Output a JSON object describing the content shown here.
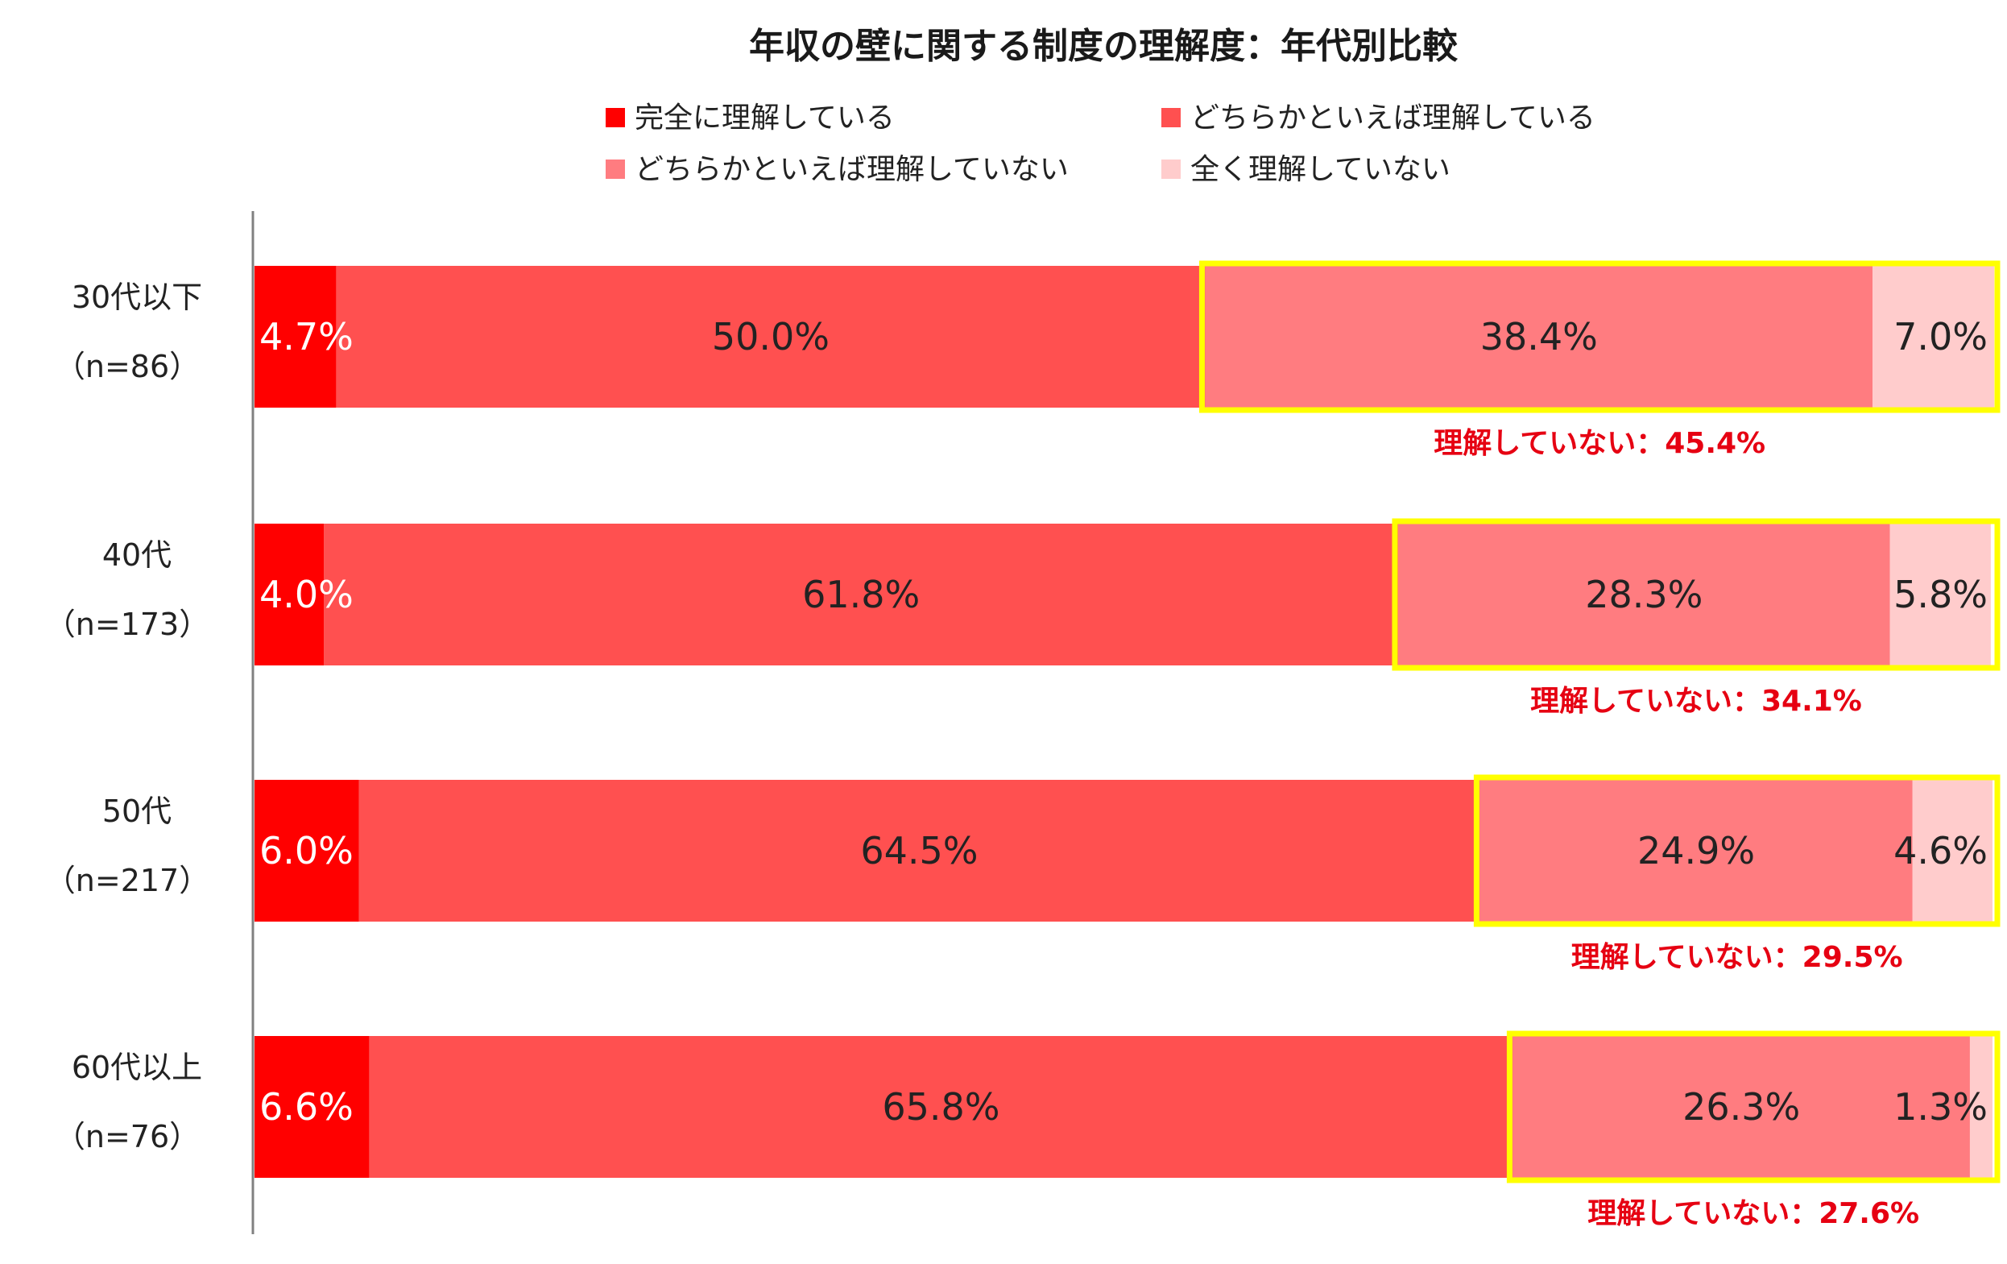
{
  "chart_data": {
    "type": "bar",
    "orientation": "horizontal",
    "stacked": true,
    "title": "年収の壁に関する制度の理解度：年代別比較",
    "xlim": [
      0,
      100
    ],
    "grid": false,
    "legend_position": "top",
    "categories": [
      {
        "label": "30代以下",
        "n": "（n=86）"
      },
      {
        "label": "40代",
        "n": "（n=173）"
      },
      {
        "label": "50代",
        "n": "（n=217）"
      },
      {
        "label": "60代以上",
        "n": "（n=76）"
      }
    ],
    "series": [
      {
        "name": "完全に理解している",
        "color": "#ff0000",
        "label_color": "#ffffff",
        "values": [
          4.7,
          4.0,
          6.0,
          6.6
        ]
      },
      {
        "name": "どちらかといえば理解している",
        "color": "#ff5050",
        "label_color": "#222222",
        "values": [
          50.0,
          61.8,
          64.5,
          65.8
        ]
      },
      {
        "name": "どちらかといえば理解していない",
        "color": "#ff7c80",
        "label_color": "#222222",
        "values": [
          38.4,
          28.3,
          24.9,
          26.3
        ]
      },
      {
        "name": "全く理解していない",
        "color": "#ffcccc",
        "label_color": "#222222",
        "values": [
          7.0,
          5.8,
          4.6,
          1.3
        ]
      }
    ],
    "annotations": [
      {
        "text": "理解していない：45.4%",
        "value": 45.4
      },
      {
        "text": "理解していない：34.1%",
        "value": 34.1
      },
      {
        "text": "理解していない：29.5%",
        "value": 29.5
      },
      {
        "text": "理解していない：27.6%",
        "value": 27.6
      }
    ],
    "highlight_color": "#ffff00",
    "callout_color": "#e60012",
    "axis_color": "#808080"
  }
}
